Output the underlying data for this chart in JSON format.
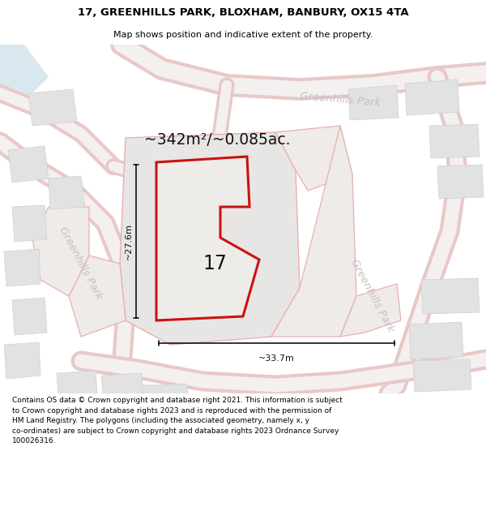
{
  "title_line1": "17, GREENHILLS PARK, BLOXHAM, BANBURY, OX15 4TA",
  "title_line2": "Map shows position and indicative extent of the property.",
  "area_text": "~342m²/~0.085ac.",
  "width_label": "~33.7m",
  "height_label": "~27.6m",
  "number_label": "17",
  "footer_lines": [
    "Contains OS data © Crown copyright and database right 2021. This information is subject to Crown copyright and database rights 2023 and is reproduced with the permission of",
    "HM Land Registry. The polygons (including the associated geometry, namely x, y",
    "co-ordinates) are subject to Crown copyright and database rights 2023 Ordnance Survey",
    "100026316."
  ],
  "map_bg": "#f2f0ee",
  "road_fill": "#f7f4f4",
  "road_edge": "#e0b0b0",
  "plot_outline_color": "#cc1111",
  "dim_color": "#111111",
  "street_color": "#c8c0c0",
  "building_fill": "#e2e2e2",
  "building_edge": "#d0d0d0",
  "center_plot_fill": "#e8e6e4",
  "neighbor_plot_edge": "#e8b0b0",
  "white": "#ffffff",
  "blue_patch": "#d8e8ee"
}
